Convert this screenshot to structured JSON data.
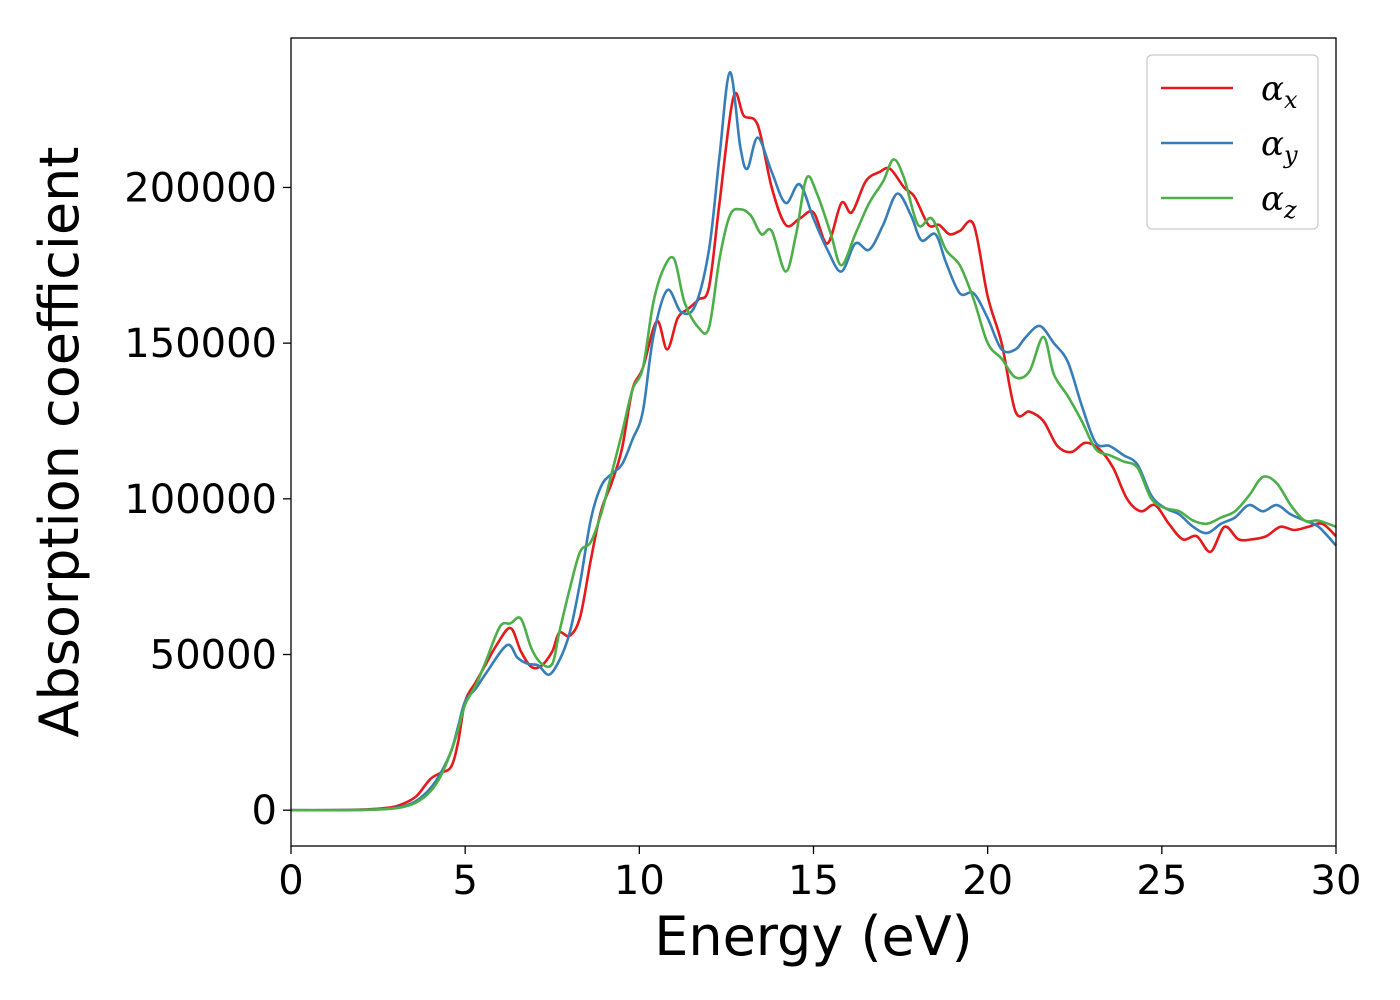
{
  "chart_data": {
    "type": "line",
    "title": "",
    "xlabel": "Energy (eV)",
    "ylabel": "Absorption coefficient",
    "xlim": [
      0,
      30
    ],
    "ylim": [
      -11500,
      248000
    ],
    "xticks": [
      0,
      5,
      10,
      15,
      20,
      25,
      30
    ],
    "yticks": [
      0,
      50000,
      100000,
      150000,
      200000
    ],
    "grid": false,
    "legend_position": "top-right",
    "series": [
      {
        "name": "x",
        "color": "#e41a1c",
        "points": [
          [
            0,
            0
          ],
          [
            1,
            0
          ],
          [
            2,
            200
          ],
          [
            2.8,
            800
          ],
          [
            3.2,
            2000
          ],
          [
            3.6,
            4500
          ],
          [
            4.0,
            10000
          ],
          [
            4.3,
            12000
          ],
          [
            4.6,
            14000
          ],
          [
            4.8,
            22000
          ],
          [
            5.0,
            35000
          ],
          [
            5.3,
            41000
          ],
          [
            5.6,
            47000
          ],
          [
            5.9,
            53000
          ],
          [
            6.3,
            58500
          ],
          [
            6.6,
            51000
          ],
          [
            6.9,
            46000
          ],
          [
            7.2,
            46500
          ],
          [
            7.5,
            51000
          ],
          [
            7.7,
            57000
          ],
          [
            8.0,
            56000
          ],
          [
            8.3,
            62000
          ],
          [
            8.6,
            80000
          ],
          [
            8.9,
            96000
          ],
          [
            9.2,
            105000
          ],
          [
            9.5,
            116000
          ],
          [
            9.8,
            135000
          ],
          [
            10.1,
            142000
          ],
          [
            10.5,
            157000
          ],
          [
            10.8,
            148000
          ],
          [
            11.1,
            158000
          ],
          [
            11.4,
            161000
          ],
          [
            11.7,
            164000
          ],
          [
            12.0,
            168000
          ],
          [
            12.3,
            195000
          ],
          [
            12.7,
            229000
          ],
          [
            13.0,
            223000
          ],
          [
            13.4,
            220000
          ],
          [
            13.8,
            200000
          ],
          [
            14.2,
            188000
          ],
          [
            14.6,
            190000
          ],
          [
            15.0,
            192000
          ],
          [
            15.4,
            182000
          ],
          [
            15.8,
            195000
          ],
          [
            16.1,
            192000
          ],
          [
            16.5,
            202000
          ],
          [
            16.9,
            205000
          ],
          [
            17.2,
            206000
          ],
          [
            17.6,
            200000
          ],
          [
            17.9,
            197000
          ],
          [
            18.3,
            188000
          ],
          [
            18.6,
            188000
          ],
          [
            18.9,
            185000
          ],
          [
            19.2,
            186000
          ],
          [
            19.6,
            188000
          ],
          [
            20.0,
            165000
          ],
          [
            20.4,
            150000
          ],
          [
            20.8,
            128000
          ],
          [
            21.2,
            128000
          ],
          [
            21.6,
            125000
          ],
          [
            22.0,
            117000
          ],
          [
            22.4,
            115000
          ],
          [
            22.8,
            118000
          ],
          [
            23.2,
            116000
          ],
          [
            23.6,
            110000
          ],
          [
            24.0,
            100000
          ],
          [
            24.4,
            96000
          ],
          [
            24.8,
            98000
          ],
          [
            25.2,
            92000
          ],
          [
            25.6,
            87000
          ],
          [
            26.0,
            88000
          ],
          [
            26.4,
            83000
          ],
          [
            26.8,
            91000
          ],
          [
            27.2,
            87000
          ],
          [
            27.6,
            87000
          ],
          [
            28.0,
            88000
          ],
          [
            28.4,
            91000
          ],
          [
            28.8,
            90000
          ],
          [
            29.2,
            91000
          ],
          [
            29.6,
            92000
          ],
          [
            30.0,
            88000
          ]
        ]
      },
      {
        "name": "y",
        "color": "#377eb8",
        "points": [
          [
            0,
            0
          ],
          [
            1,
            0
          ],
          [
            2,
            100
          ],
          [
            2.8,
            500
          ],
          [
            3.2,
            1200
          ],
          [
            3.6,
            3000
          ],
          [
            4.0,
            7000
          ],
          [
            4.3,
            12000
          ],
          [
            4.6,
            19000
          ],
          [
            4.8,
            27000
          ],
          [
            5.0,
            35000
          ],
          [
            5.3,
            39000
          ],
          [
            5.6,
            44000
          ],
          [
            6.2,
            53000
          ],
          [
            6.5,
            49000
          ],
          [
            6.8,
            47000
          ],
          [
            7.1,
            46500
          ],
          [
            7.4,
            43500
          ],
          [
            7.7,
            48000
          ],
          [
            8.0,
            57000
          ],
          [
            8.3,
            73000
          ],
          [
            8.6,
            93000
          ],
          [
            8.9,
            104000
          ],
          [
            9.2,
            108000
          ],
          [
            9.5,
            111000
          ],
          [
            9.8,
            119000
          ],
          [
            10.1,
            128000
          ],
          [
            10.4,
            152000
          ],
          [
            10.8,
            167000
          ],
          [
            11.2,
            160000
          ],
          [
            11.6,
            162000
          ],
          [
            12.0,
            180000
          ],
          [
            12.3,
            210000
          ],
          [
            12.6,
            237000
          ],
          [
            12.9,
            213000
          ],
          [
            13.1,
            206000
          ],
          [
            13.4,
            216000
          ],
          [
            13.8,
            205000
          ],
          [
            14.2,
            195000
          ],
          [
            14.6,
            201000
          ],
          [
            15.0,
            190000
          ],
          [
            15.4,
            180000
          ],
          [
            15.8,
            173000
          ],
          [
            16.2,
            182000
          ],
          [
            16.6,
            180000
          ],
          [
            17.0,
            188000
          ],
          [
            17.4,
            198000
          ],
          [
            17.8,
            191000
          ],
          [
            18.1,
            183000
          ],
          [
            18.5,
            185000
          ],
          [
            18.8,
            176000
          ],
          [
            19.2,
            166000
          ],
          [
            19.6,
            166000
          ],
          [
            20.0,
            158000
          ],
          [
            20.4,
            148000
          ],
          [
            20.8,
            148000
          ],
          [
            21.1,
            152000
          ],
          [
            21.5,
            155500
          ],
          [
            21.9,
            150000
          ],
          [
            22.3,
            144000
          ],
          [
            22.7,
            130000
          ],
          [
            23.1,
            118000
          ],
          [
            23.5,
            117000
          ],
          [
            23.9,
            114000
          ],
          [
            24.3,
            111000
          ],
          [
            24.7,
            101000
          ],
          [
            25.1,
            97000
          ],
          [
            25.5,
            95000
          ],
          [
            25.9,
            91000
          ],
          [
            26.3,
            89000
          ],
          [
            26.7,
            92000
          ],
          [
            27.1,
            94000
          ],
          [
            27.5,
            98000
          ],
          [
            27.9,
            96000
          ],
          [
            28.3,
            98000
          ],
          [
            28.7,
            95000
          ],
          [
            29.1,
            93000
          ],
          [
            29.5,
            91000
          ],
          [
            30.0,
            85000
          ]
        ]
      },
      {
        "name": "z",
        "color": "#4daf4a",
        "points": [
          [
            0,
            0
          ],
          [
            1,
            0
          ],
          [
            2,
            100
          ],
          [
            2.8,
            400
          ],
          [
            3.2,
            1000
          ],
          [
            3.6,
            2500
          ],
          [
            4.0,
            6000
          ],
          [
            4.3,
            11000
          ],
          [
            4.6,
            19000
          ],
          [
            4.8,
            26000
          ],
          [
            5.0,
            34000
          ],
          [
            5.3,
            40000
          ],
          [
            5.6,
            48000
          ],
          [
            6.0,
            59000
          ],
          [
            6.3,
            60000
          ],
          [
            6.6,
            61500
          ],
          [
            6.9,
            52000
          ],
          [
            7.2,
            47000
          ],
          [
            7.5,
            47000
          ],
          [
            7.7,
            57000
          ],
          [
            8.0,
            71000
          ],
          [
            8.3,
            83000
          ],
          [
            8.6,
            86000
          ],
          [
            8.9,
            95000
          ],
          [
            9.2,
            108000
          ],
          [
            9.5,
            121000
          ],
          [
            9.8,
            135000
          ],
          [
            10.1,
            142000
          ],
          [
            10.4,
            163000
          ],
          [
            10.7,
            174000
          ],
          [
            11.0,
            177000
          ],
          [
            11.3,
            163000
          ],
          [
            11.7,
            155000
          ],
          [
            12.0,
            155000
          ],
          [
            12.3,
            177000
          ],
          [
            12.6,
            191000
          ],
          [
            12.9,
            193000
          ],
          [
            13.2,
            191000
          ],
          [
            13.5,
            185000
          ],
          [
            13.8,
            186000
          ],
          [
            14.2,
            173000
          ],
          [
            14.5,
            185000
          ],
          [
            14.8,
            203000
          ],
          [
            15.1,
            198000
          ],
          [
            15.5,
            185000
          ],
          [
            15.8,
            175000
          ],
          [
            16.2,
            185000
          ],
          [
            16.6,
            195000
          ],
          [
            17.0,
            202000
          ],
          [
            17.3,
            209000
          ],
          [
            17.6,
            203000
          ],
          [
            18.0,
            188000
          ],
          [
            18.4,
            190000
          ],
          [
            18.8,
            180000
          ],
          [
            19.2,
            175000
          ],
          [
            19.6,
            164000
          ],
          [
            20.0,
            150000
          ],
          [
            20.4,
            145000
          ],
          [
            20.8,
            139000
          ],
          [
            21.2,
            141000
          ],
          [
            21.6,
            152000
          ],
          [
            21.9,
            140000
          ],
          [
            22.3,
            133000
          ],
          [
            22.7,
            125000
          ],
          [
            23.1,
            116000
          ],
          [
            23.5,
            114000
          ],
          [
            23.9,
            112000
          ],
          [
            24.3,
            110000
          ],
          [
            24.7,
            100000
          ],
          [
            25.1,
            97000
          ],
          [
            25.5,
            96000
          ],
          [
            25.9,
            93000
          ],
          [
            26.3,
            92000
          ],
          [
            26.7,
            94000
          ],
          [
            27.1,
            96000
          ],
          [
            27.5,
            101000
          ],
          [
            27.9,
            107000
          ],
          [
            28.3,
            105000
          ],
          [
            28.7,
            98000
          ],
          [
            29.1,
            93000
          ],
          [
            29.5,
            93000
          ],
          [
            30.0,
            91000
          ]
        ]
      }
    ]
  }
}
